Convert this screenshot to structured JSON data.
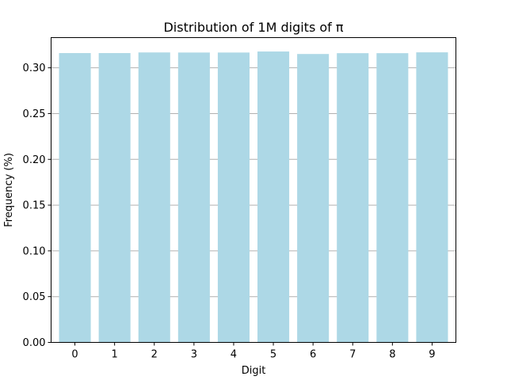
{
  "chart_data": {
    "type": "bar",
    "title": "Distribution of 1M digits of π",
    "xlabel": "Digit",
    "ylabel": "Frequency (%)",
    "categories": [
      "0",
      "1",
      "2",
      "3",
      "4",
      "5",
      "6",
      "7",
      "8",
      "9"
    ],
    "values": [
      0.3161,
      0.3161,
      0.3168,
      0.3167,
      0.3167,
      0.3178,
      0.3151,
      0.316,
      0.316,
      0.3169
    ],
    "ylim": [
      0,
      0.333
    ],
    "yticks": [
      "0.00",
      "0.05",
      "0.10",
      "0.15",
      "0.20",
      "0.25",
      "0.30"
    ],
    "grid": "y",
    "bar_color": "#add8e6",
    "grid_color": "#b0b0b0"
  }
}
